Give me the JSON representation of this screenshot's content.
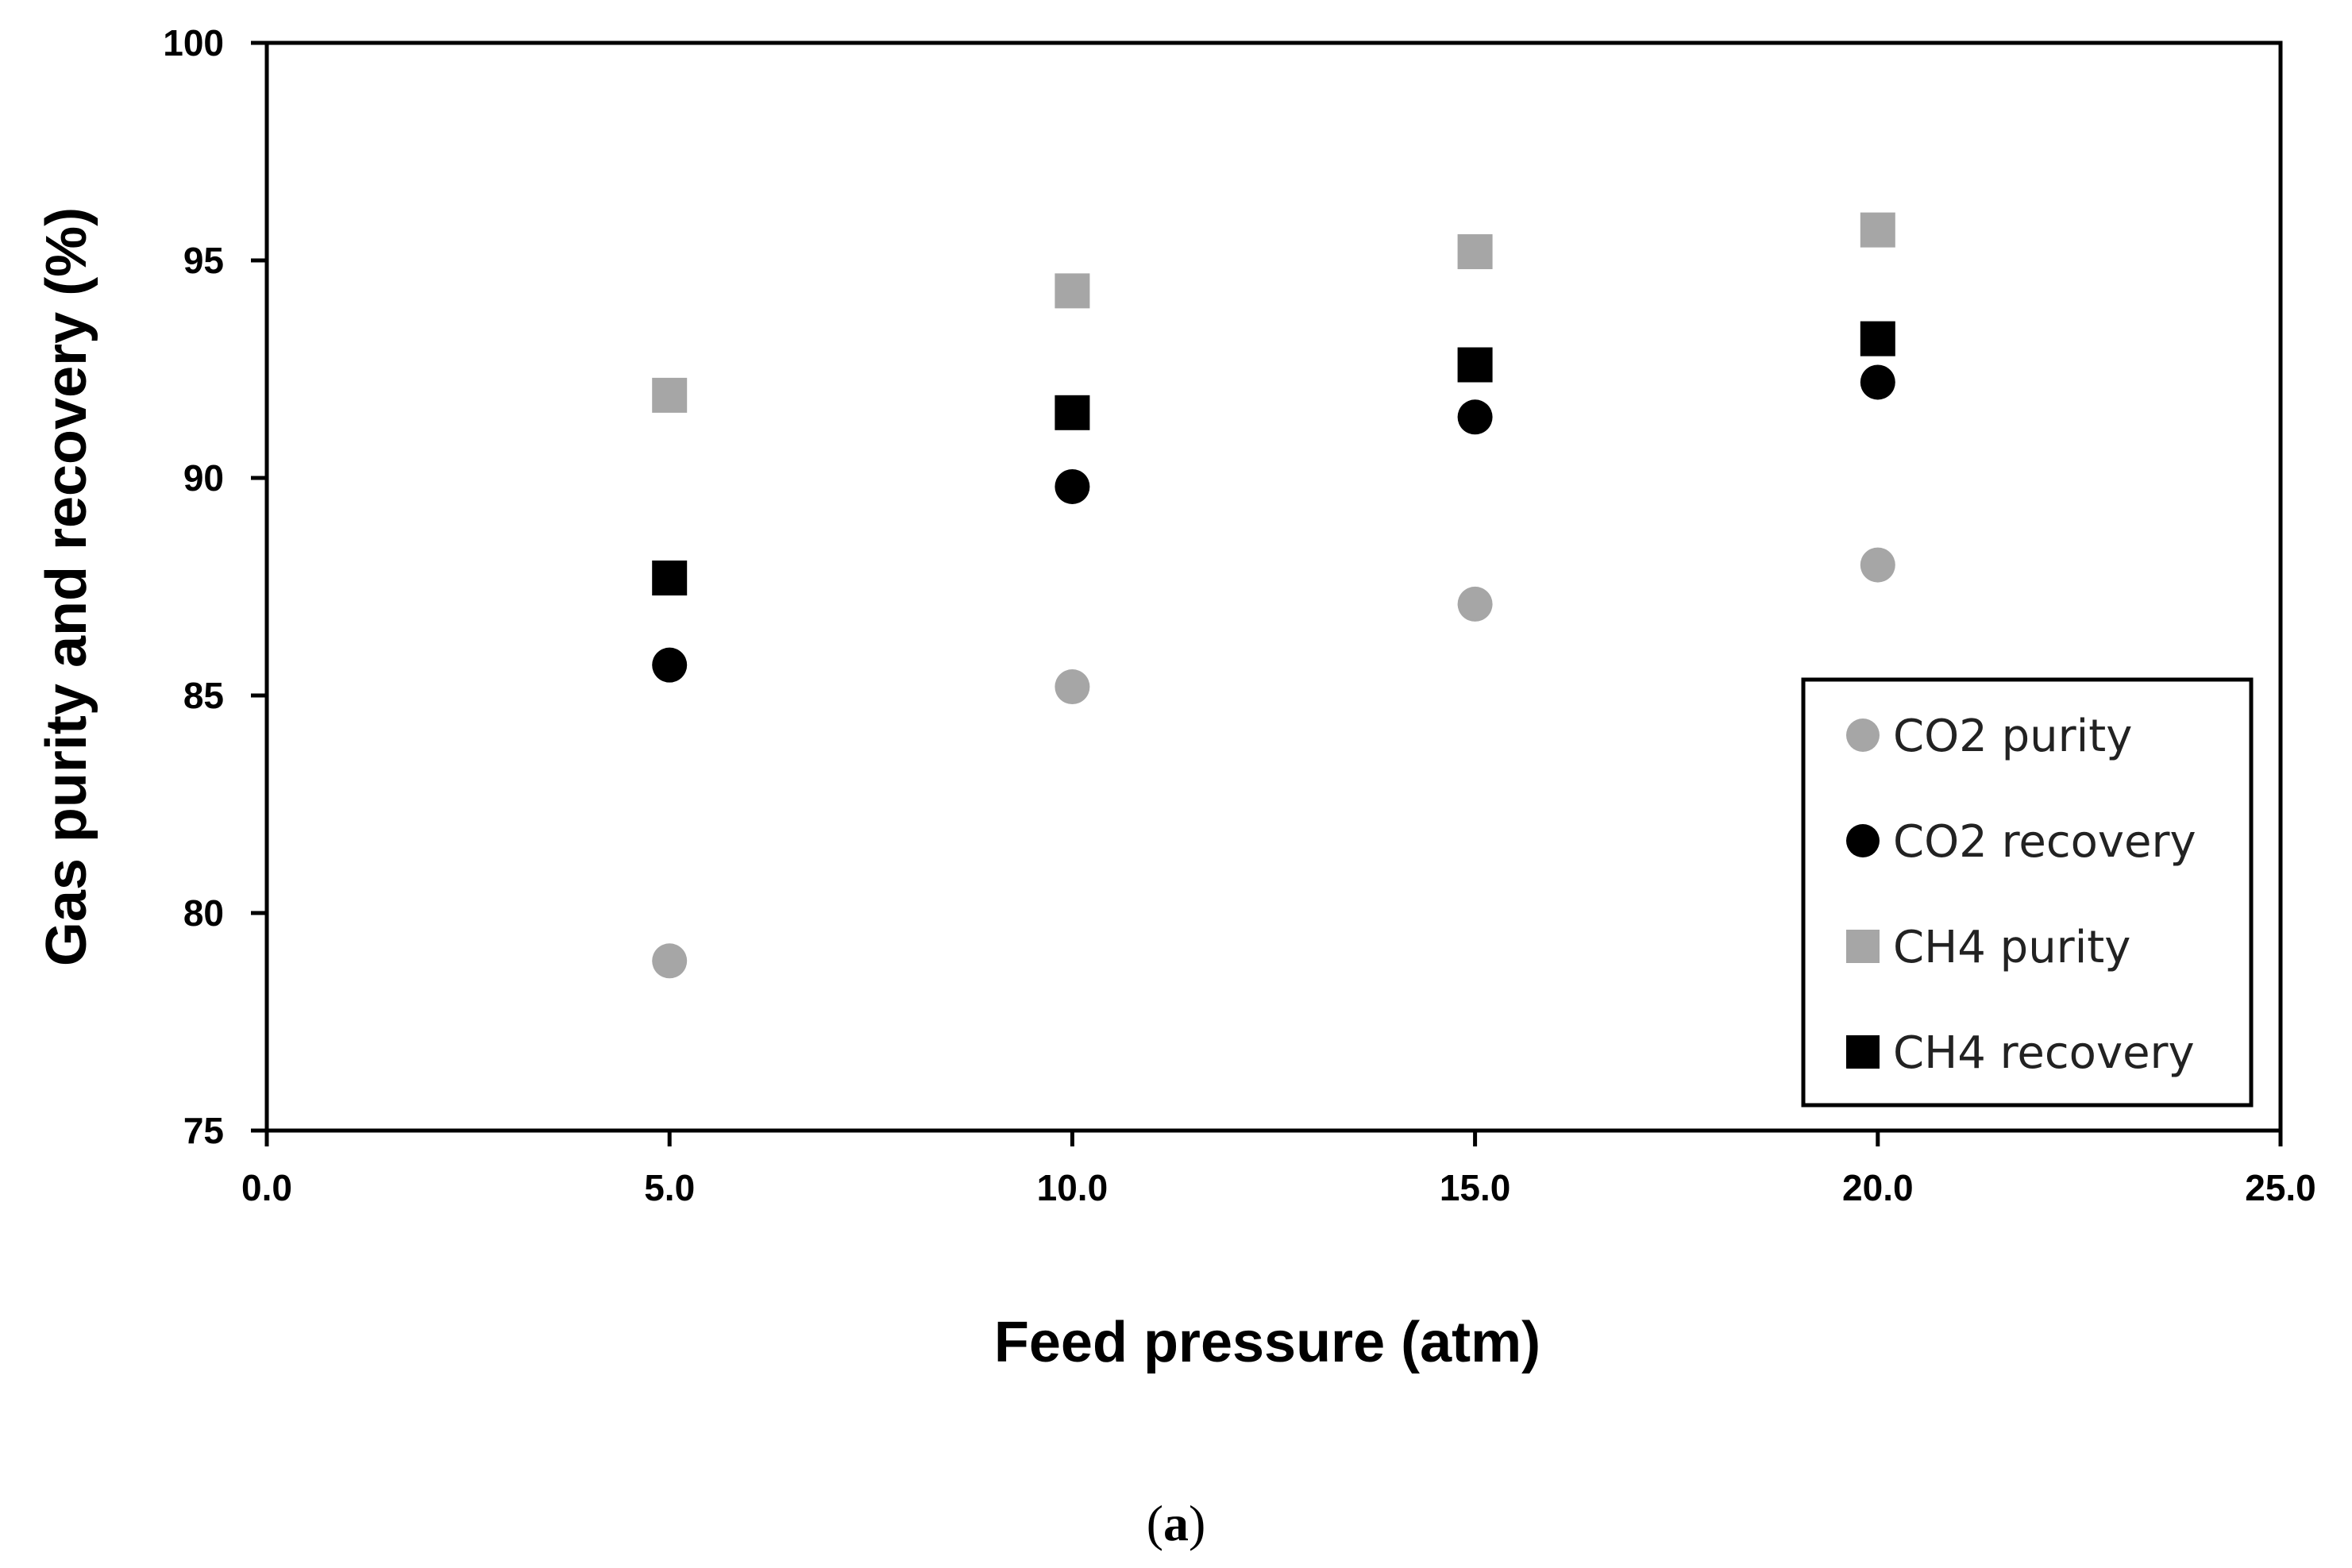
{
  "chart_data": {
    "type": "scatter",
    "xlabel": "Feed pressure (atm)",
    "ylabel": "Gas purity and recovery (%)",
    "xlim": [
      0,
      25
    ],
    "ylim": [
      75,
      100
    ],
    "x_ticks": [
      "0.0",
      "5.0",
      "10.0",
      "15.0",
      "20.0",
      "25.0"
    ],
    "y_ticks": [
      "75",
      "80",
      "85",
      "90",
      "95",
      "100"
    ],
    "grid": false,
    "legend_position": "bottom-right",
    "x": [
      5,
      10,
      15,
      20
    ],
    "series": [
      {
        "name": "CO2 purity",
        "marker": "circle",
        "color": "#a6a6a6",
        "values": [
          78.9,
          85.2,
          87.1,
          88.0
        ]
      },
      {
        "name": "CO2 recovery",
        "marker": "circle",
        "color": "#000000",
        "values": [
          85.7,
          89.8,
          91.4,
          92.2
        ]
      },
      {
        "name": "CH4 purity",
        "marker": "square",
        "color": "#a6a6a6",
        "values": [
          91.9,
          94.3,
          95.2,
          95.7
        ]
      },
      {
        "name": "CH4 recovery",
        "marker": "square",
        "color": "#000000",
        "values": [
          87.7,
          91.5,
          92.6,
          93.2
        ]
      }
    ]
  },
  "caption": {
    "open": "(",
    "letter": "a",
    "close": ")"
  }
}
